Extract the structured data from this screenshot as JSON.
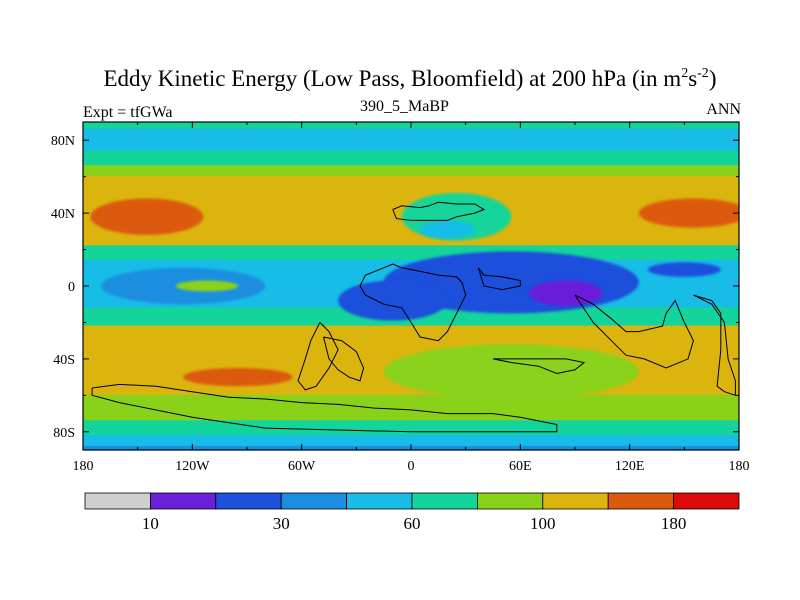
{
  "chart_data": {
    "type": "filled-contour map",
    "title": "Eddy Kinetic Energy (Low Pass, Bloomfield) at 200 hPa (in m",
    "title_unit_exp1": "2",
    "title_unit_mid": "s",
    "title_unit_exp2": "-2",
    "title_close": ")",
    "left_string": "Expt = tfGWa",
    "center_string": "390_5_MaBP",
    "right_string": "ANN",
    "x_ticks": [
      {
        "lon": -180,
        "label": "180"
      },
      {
        "lon": -120,
        "label": "120W"
      },
      {
        "lon": -60,
        "label": "60W"
      },
      {
        "lon": 0,
        "label": "0"
      },
      {
        "lon": 60,
        "label": "60E"
      },
      {
        "lon": 120,
        "label": "120E"
      },
      {
        "lon": 180,
        "label": "180"
      }
    ],
    "y_ticks": [
      {
        "lat": 80,
        "label": "80N"
      },
      {
        "lat": 40,
        "label": "40N"
      },
      {
        "lat": 0,
        "label": "0"
      },
      {
        "lat": -40,
        "label": "40S"
      },
      {
        "lat": -80,
        "label": "80S"
      }
    ],
    "xlim": [
      -180,
      180
    ],
    "ylim": [
      -90,
      90
    ],
    "colorbar": {
      "levels": [
        10,
        20,
        30,
        40,
        60,
        80,
        100,
        140,
        180
      ],
      "labels": [
        {
          "value": 10,
          "label": "10"
        },
        {
          "value": 30,
          "label": "30"
        },
        {
          "value": 60,
          "label": "60"
        },
        {
          "value": 100,
          "label": "100"
        },
        {
          "value": 180,
          "label": "180"
        }
      ],
      "colors": [
        "#cfcfcf",
        "#6a1fd8",
        "#1d50dc",
        "#1a8ee0",
        "#17bde6",
        "#13d49a",
        "#8ad21a",
        "#dcb40e",
        "#dc5a0c",
        "#dc0a0a"
      ]
    },
    "fields": {
      "latitude_bands": [
        {
          "lat_top": 90,
          "lat_bottom": 86,
          "level_index": 5
        },
        {
          "lat_top": 86,
          "lat_bottom": 74,
          "level_index": 4
        },
        {
          "lat_top": 74,
          "lat_bottom": 66,
          "level_index": 5
        },
        {
          "lat_top": 66,
          "lat_bottom": 60,
          "level_index": 6
        },
        {
          "lat_top": 60,
          "lat_bottom": 22,
          "level_index": 7
        },
        {
          "lat_top": 22,
          "lat_bottom": 14,
          "level_index": 5
        },
        {
          "lat_top": 14,
          "lat_bottom": -12,
          "level_index": 4
        },
        {
          "lat_top": -12,
          "lat_bottom": -22,
          "level_index": 5
        },
        {
          "lat_top": -22,
          "lat_bottom": -60,
          "level_index": 7
        },
        {
          "lat_top": -60,
          "lat_bottom": -74,
          "level_index": 6
        },
        {
          "lat_top": -74,
          "lat_bottom": -82,
          "level_index": 5
        },
        {
          "lat_top": -82,
          "lat_bottom": -88,
          "level_index": 4
        },
        {
          "lat_top": -88,
          "lat_bottom": -90,
          "level_index": 3
        }
      ],
      "features": [
        {
          "name": "north-pacific-maximum",
          "level_index": 8,
          "lon": -145,
          "lat": 38,
          "lon_extent": 62,
          "lat_extent": 20
        },
        {
          "name": "north-asia-maximum",
          "level_index": 8,
          "lon": 155,
          "lat": 40,
          "lon_extent": 60,
          "lat_extent": 16
        },
        {
          "name": "south-pacific-maximum",
          "level_index": 8,
          "lon": -95,
          "lat": -50,
          "lon_extent": 60,
          "lat_extent": 10
        },
        {
          "name": "tropical-low-wide",
          "level_index": 2,
          "lon": 55,
          "lat": 2,
          "lon_extent": 140,
          "lat_extent": 34
        },
        {
          "name": "tropical-low-west",
          "level_index": 2,
          "lon": -10,
          "lat": -8,
          "lon_extent": 60,
          "lat_extent": 22
        },
        {
          "name": "tropical-minimum",
          "level_index": 1,
          "lon": 85,
          "lat": -4,
          "lon_extent": 40,
          "lat_extent": 14
        },
        {
          "name": "tropical-low-east",
          "level_index": 2,
          "lon": 150,
          "lat": 9,
          "lon_extent": 40,
          "lat_extent": 8
        },
        {
          "name": "eastern-pacific-cyan",
          "level_index": 3,
          "lon": -125,
          "lat": 0,
          "lon_extent": 90,
          "lat_extent": 20
        },
        {
          "name": "tropical-green-spot",
          "level_index": 6,
          "lon": -112,
          "lat": 0,
          "lon_extent": 34,
          "lat_extent": 6
        },
        {
          "name": "north-africa-trough",
          "level_index": 5,
          "lon": 25,
          "lat": 38,
          "lon_extent": 60,
          "lat_extent": 26
        },
        {
          "name": "north-africa-trough-center",
          "level_index": 4,
          "lon": 20,
          "lat": 31,
          "lon_extent": 30,
          "lat_extent": 10
        },
        {
          "name": "southern-green-region",
          "level_index": 6,
          "lon": 55,
          "lat": -47,
          "lon_extent": 140,
          "lat_extent": 30
        }
      ],
      "coastlines": [
        [
          [
            -10,
            42
          ],
          [
            -5,
            44
          ],
          [
            5,
            43
          ],
          [
            10,
            44
          ],
          [
            15,
            46
          ],
          [
            25,
            45
          ],
          [
            35,
            45
          ],
          [
            40,
            42
          ],
          [
            35,
            40
          ],
          [
            25,
            38
          ],
          [
            20,
            36
          ],
          [
            10,
            36
          ],
          [
            0,
            36
          ],
          [
            -8,
            37
          ],
          [
            -10,
            42
          ]
        ],
        [
          [
            -15,
            10
          ],
          [
            -10,
            12
          ],
          [
            -5,
            10
          ],
          [
            5,
            8
          ],
          [
            15,
            6
          ],
          [
            25,
            5
          ],
          [
            28,
            2
          ],
          [
            30,
            -5
          ],
          [
            25,
            -15
          ],
          [
            20,
            -25
          ],
          [
            15,
            -30
          ],
          [
            5,
            -28
          ],
          [
            0,
            -20
          ],
          [
            -5,
            -12
          ],
          [
            -15,
            -10
          ],
          [
            -25,
            -5
          ],
          [
            -28,
            0
          ],
          [
            -25,
            6
          ],
          [
            -15,
            10
          ]
        ],
        [
          [
            -50,
            -20
          ],
          [
            -45,
            -25
          ],
          [
            -40,
            -35
          ],
          [
            -45,
            -45
          ],
          [
            -52,
            -55
          ],
          [
            -58,
            -57
          ],
          [
            -62,
            -52
          ],
          [
            -58,
            -40
          ],
          [
            -55,
            -30
          ],
          [
            -50,
            -20
          ]
        ],
        [
          [
            -48,
            -28
          ],
          [
            -45,
            -40
          ],
          [
            -40,
            -46
          ],
          [
            -34,
            -50
          ],
          [
            -28,
            -52
          ],
          [
            -26,
            -45
          ],
          [
            -30,
            -36
          ],
          [
            -38,
            -30
          ],
          [
            -48,
            -28
          ]
        ],
        [
          [
            -175,
            -56
          ],
          [
            -160,
            -54
          ],
          [
            -140,
            -55
          ],
          [
            -120,
            -58
          ],
          [
            -100,
            -61
          ],
          [
            -80,
            -62
          ],
          [
            -60,
            -64
          ],
          [
            -40,
            -65
          ],
          [
            -20,
            -67
          ],
          [
            0,
            -68
          ],
          [
            20,
            -70
          ],
          [
            45,
            -70
          ],
          [
            60,
            -72
          ],
          [
            80,
            -76
          ],
          [
            80,
            -80
          ],
          [
            40,
            -80
          ],
          [
            0,
            -80
          ],
          [
            -40,
            -79
          ],
          [
            -80,
            -78
          ],
          [
            -120,
            -72
          ],
          [
            -160,
            -64
          ],
          [
            -175,
            -60
          ],
          [
            -175,
            -56
          ]
        ],
        [
          [
            90,
            -5
          ],
          [
            100,
            -10
          ],
          [
            110,
            -18
          ],
          [
            118,
            -25
          ],
          [
            125,
            -25
          ],
          [
            138,
            -22
          ],
          [
            140,
            -15
          ],
          [
            145,
            -8
          ],
          [
            150,
            -20
          ],
          [
            155,
            -30
          ],
          [
            152,
            -40
          ],
          [
            140,
            -45
          ],
          [
            128,
            -40
          ],
          [
            118,
            -38
          ],
          [
            110,
            -30
          ],
          [
            100,
            -20
          ],
          [
            90,
            -5
          ]
        ],
        [
          [
            155,
            -5
          ],
          [
            165,
            -8
          ],
          [
            170,
            -15
          ],
          [
            170,
            -35
          ],
          [
            168,
            -55
          ],
          [
            172,
            -58
          ],
          [
            178,
            -60
          ],
          [
            178,
            -52
          ],
          [
            174,
            -40
          ],
          [
            172,
            -20
          ],
          [
            165,
            -10
          ],
          [
            155,
            -5
          ]
        ],
        [
          [
            45,
            -40
          ],
          [
            55,
            -42
          ],
          [
            70,
            -44
          ],
          [
            80,
            -48
          ],
          [
            90,
            -46
          ],
          [
            95,
            -42
          ],
          [
            85,
            -40
          ],
          [
            65,
            -40
          ],
          [
            45,
            -40
          ]
        ],
        [
          [
            37,
            10
          ],
          [
            40,
            6
          ],
          [
            50,
            5
          ],
          [
            60,
            3
          ],
          [
            60,
            0
          ],
          [
            50,
            -2
          ],
          [
            40,
            0
          ],
          [
            37,
            10
          ]
        ]
      ]
    }
  }
}
